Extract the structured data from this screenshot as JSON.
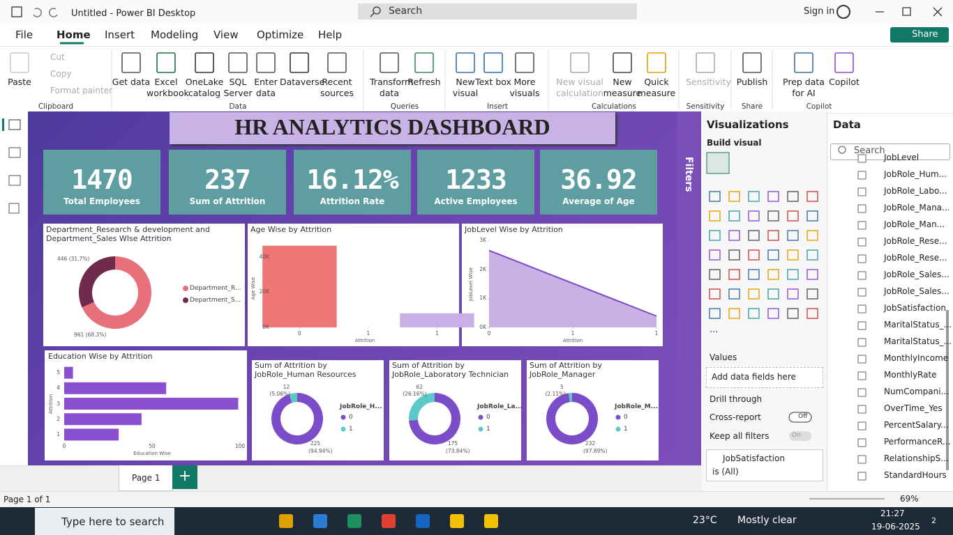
{
  "titlebar": {
    "title": "Untitled - Power BI Desktop",
    "search": "Search",
    "sign_in": "Sign in"
  },
  "menu": {
    "tabs": [
      "File",
      "Home",
      "Insert",
      "Modeling",
      "View",
      "Optimize",
      "Help"
    ],
    "share": "Share"
  },
  "ribbon": {
    "buttons": [
      "Paste",
      "Cut",
      "Copy",
      "Format painter",
      "Get data",
      "Excel workbook",
      "OneLake catalog",
      "SQL Server",
      "Enter data",
      "Dataverse",
      "Recent sources",
      "Transform data",
      "Refresh",
      "New visual",
      "Text box",
      "More visuals",
      "New visual calculation",
      "New measure",
      "Quick measure",
      "Sensitivity",
      "Publish",
      "Prep data for AI",
      "Copilot"
    ],
    "groups": [
      "Clipboard",
      "Data",
      "Queries",
      "Insert",
      "Calculations",
      "Sensitivity",
      "Share",
      "Copilot"
    ]
  },
  "dashboard": {
    "title": "HR ANALYTICS DASHBOARD",
    "kpis": [
      {
        "value": 1470,
        "label": "Total Employees"
      },
      {
        "value": 237,
        "label": "Sum of Attrition"
      },
      {
        "value": "16.12%",
        "label": "Attrition Rate"
      },
      {
        "value": 1233,
        "label": "Active Employees"
      },
      {
        "value": 36.92,
        "label": "Average of Age"
      }
    ],
    "charts": [
      {
        "type": "donut",
        "title": "Department_Research & development and Department_Sales WIse Attrition",
        "series": [
          {
            "name": "Department_R...",
            "color": "#e8707a",
            "value": 961,
            "value_label": "961 (68.3%)"
          },
          {
            "name": "Department_S...",
            "color": "#6e2b4b",
            "value": 446,
            "value_label": "446 (31.7%)"
          }
        ]
      },
      {
        "type": "bar",
        "title": "Age Wise by Attrition",
        "x": [
          0,
          1
        ],
        "values": [
          46300,
          8000
        ],
        "colors": [
          "#f07575",
          "#c8b0e6"
        ],
        "xlim": [
          -0.2,
          1.15
        ],
        "xticks": [
          0,
          {
            "value": 0.5,
            "label": "1"
          },
          1
        ],
        "ylim": [
          0,
          47000
        ],
        "yticks": [
          {
            "value": 0,
            "label": "0K"
          },
          {
            "value": 20000,
            "label": "20K"
          },
          {
            "value": 40000,
            "label": "40K"
          }
        ],
        "x_label": "Attrition",
        "y_label": "Age Wise"
      },
      {
        "type": "area",
        "title": "JobLevel Wise by Attrition",
        "x": [
          0,
          1
        ],
        "values": [
          2650,
          390
        ],
        "color": "#7b4bc4",
        "fill": "#c9b1e6",
        "xlim": [
          0,
          1
        ],
        "xticks": [
          0,
          {
            "value": 0.5,
            "label": "1"
          },
          1
        ],
        "ylim": [
          0,
          3000
        ],
        "yticks": [
          {
            "value": 0,
            "label": "0K"
          },
          {
            "value": 1000,
            "label": "1K"
          },
          {
            "value": 2000,
            "label": "2K"
          },
          {
            "value": 3000,
            "label": "3K"
          }
        ],
        "x_label": "Attrition",
        "y_label": "JobLevel Wise"
      },
      {
        "type": "hbar",
        "title": "Education Wise by Attrition",
        "categories": [
          "5",
          "4",
          "3",
          "2",
          "1"
        ],
        "values": [
          5,
          58,
          99,
          44,
          31
        ],
        "color": "#8a4fd0",
        "xlim": [
          0,
          100
        ],
        "xticks": [
          0,
          50,
          100
        ],
        "x_label": "Education Wise",
        "y_label": "Attrition"
      },
      {
        "type": "donut_small",
        "title": "Sum of Attrition by JobRole_Human Resources",
        "legend_title": "JobRole_H...",
        "series": [
          {
            "name": "0",
            "color": "#7c4dc9",
            "value": 225,
            "pct": "(94.94%)"
          },
          {
            "name": "1",
            "color": "#5cc8c8",
            "value": 12,
            "pct": "(5.06%)"
          }
        ]
      },
      {
        "type": "donut_small",
        "title": "Sum of Attrition by JobRole_Laboratory Technician",
        "legend_title": "JobRole_La...",
        "series": [
          {
            "name": "0",
            "color": "#7c4dc9",
            "value": 175,
            "pct": "(73.84%)"
          },
          {
            "name": "1",
            "color": "#5cc8c8",
            "value": 62,
            "pct": "(26.16%)"
          }
        ]
      },
      {
        "type": "donut_small",
        "title": "Sum of Attrition by JobRole_Manager",
        "legend_title": "JobRole_M...",
        "series": [
          {
            "name": "0",
            "color": "#7c4dc9",
            "value": 232,
            "pct": "(97.89%)"
          },
          {
            "name": "1",
            "color": "#5cc8c8",
            "value": 5,
            "pct": "(2.11%)"
          }
        ]
      }
    ]
  },
  "filters": {
    "label": "Filters"
  },
  "visualizations": {
    "title": "Visualizations",
    "build": "Build visual",
    "more": "...",
    "values": "Values",
    "add_fields": "Add data fields here",
    "drill": "Drill through",
    "cross_report": "Cross-report",
    "cross_state": "Off",
    "keep_filters": "Keep all filters",
    "keep_state": "On",
    "filter_field": "JobSatisfaction",
    "filter_value": "is (All)"
  },
  "data_pane": {
    "title": "Data",
    "search": "Search",
    "fields": [
      "JobLevel",
      "JobRole_Hum...",
      "JobRole_Labo...",
      "JobRole_Mana...",
      "JobRole_Man...",
      "JobRole_Rese...",
      "JobRole_Rese...",
      "JobRole_Sales...",
      "JobRole_Sales...",
      "JobSatisfaction",
      "MaritalStatus_...",
      "MaritalStatus_...",
      "MonthlyIncome",
      "MonthlyRate",
      "NumCompani...",
      "OverTime_Yes",
      "PercentSalary...",
      "PerformanceR...",
      "RelationshipS...",
      "StandardHours"
    ]
  },
  "pages": {
    "tabs": [
      "Page 1"
    ],
    "status": "Page 1 of 1",
    "zoom": "69%"
  },
  "taskbar": {
    "search": "Type here to search",
    "temp": "23°C",
    "weather": "Mostly clear",
    "time": "21:27",
    "date": "19-06-2025",
    "notifications": "2"
  }
}
